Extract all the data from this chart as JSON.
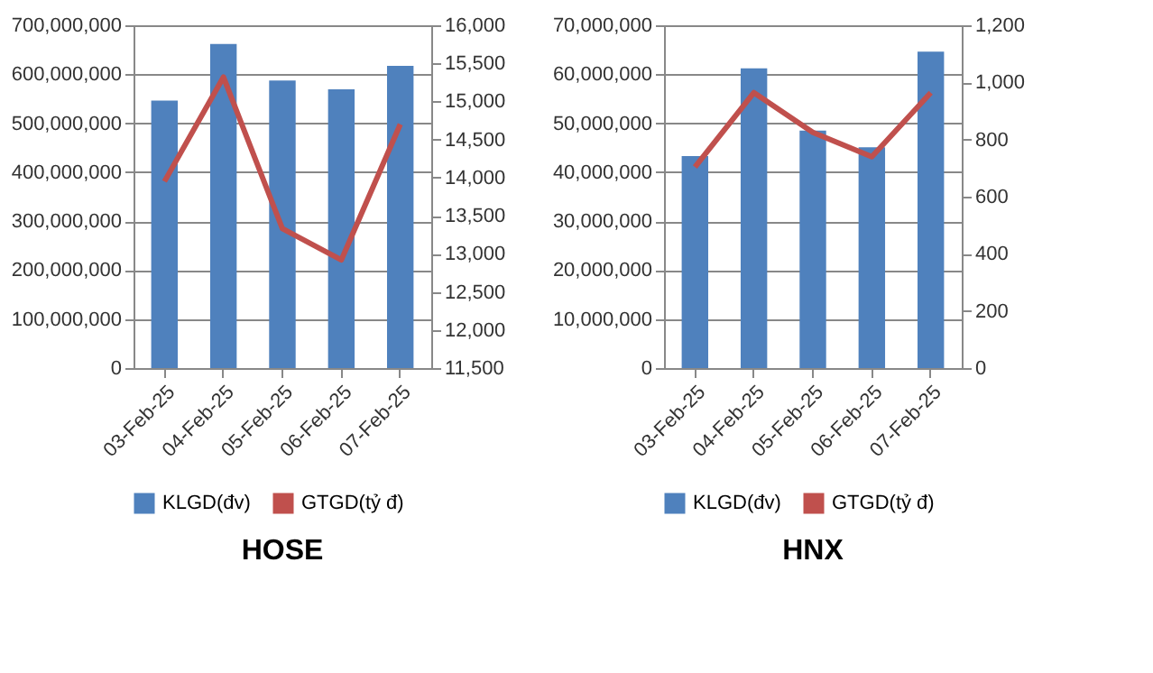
{
  "chart_data": [
    {
      "type": "bar",
      "title": "HOSE",
      "categories": [
        "03-Feb-25",
        "04-Feb-25",
        "05-Feb-25",
        "06-Feb-25",
        "07-Feb-25"
      ],
      "series": [
        {
          "name": "KLGD(đv)",
          "color": "#4f81bd",
          "values": [
            546000000,
            662000000,
            587000000,
            569000000,
            617000000
          ]
        },
        {
          "name": "GTGD(tỷ  đ)",
          "type": "line",
          "axis": "y2",
          "color": "#c0504d",
          "values": [
            13950,
            15320,
            13330,
            12920,
            14700
          ]
        }
      ],
      "ylim": [
        0,
        700000000
      ],
      "yticks": [
        0,
        {
          "value": 100000000,
          "label": "100,000,000"
        },
        {
          "value": 200000000,
          "label": "200,000,000"
        },
        {
          "value": 300000000,
          "label": "300,000,000"
        },
        {
          "value": 400000000,
          "label": "400,000,000"
        },
        {
          "value": 500000000,
          "label": "500,000,000"
        },
        {
          "value": 600000000,
          "label": "600,000,000"
        },
        {
          "value": 700000000,
          "label": "700,000,000"
        }
      ],
      "y2lim": [
        11500,
        16000
      ],
      "y2ticks": [
        {
          "value": 11500,
          "label": "11,500"
        },
        {
          "value": 12000,
          "label": "12,000"
        },
        {
          "value": 12500,
          "label": "12,500"
        },
        {
          "value": 13000,
          "label": "13,000"
        },
        {
          "value": 13500,
          "label": "13,500"
        },
        {
          "value": 14000,
          "label": "14,000"
        },
        {
          "value": 14500,
          "label": "14,500"
        },
        {
          "value": 15000,
          "label": "15,000"
        },
        {
          "value": 15500,
          "label": "15,500"
        },
        {
          "value": 16000,
          "label": "16,000"
        }
      ],
      "grid": "y",
      "legend": "bottom"
    },
    {
      "type": "bar",
      "title": "HNX",
      "categories": [
        "03-Feb-25",
        "04-Feb-25",
        "05-Feb-25",
        "06-Feb-25",
        "07-Feb-25"
      ],
      "series": [
        {
          "name": "KLGD(đv)",
          "color": "#4f81bd",
          "values": [
            43300000,
            61200000,
            48500000,
            45100000,
            64600000
          ]
        },
        {
          "name": "GTGD(tỷ  đ)",
          "type": "line",
          "axis": "y2",
          "color": "#c0504d",
          "values": [
            704,
            964,
            825,
            740,
            964
          ]
        }
      ],
      "ylim": [
        0,
        70000000
      ],
      "yticks": [
        0,
        {
          "value": 10000000,
          "label": "10,000,000"
        },
        {
          "value": 20000000,
          "label": "20,000,000"
        },
        {
          "value": 30000000,
          "label": "30,000,000"
        },
        {
          "value": 40000000,
          "label": "40,000,000"
        },
        {
          "value": 50000000,
          "label": "50,000,000"
        },
        {
          "value": 60000000,
          "label": "60,000,000"
        },
        {
          "value": 70000000,
          "label": "70,000,000"
        }
      ],
      "y2lim": [
        0,
        1200
      ],
      "y2ticks": [
        0,
        200,
        400,
        600,
        800,
        {
          "value": 1000,
          "label": "1,000"
        },
        {
          "value": 1200,
          "label": "1,200"
        }
      ],
      "grid": "y",
      "legend": "bottom"
    }
  ]
}
